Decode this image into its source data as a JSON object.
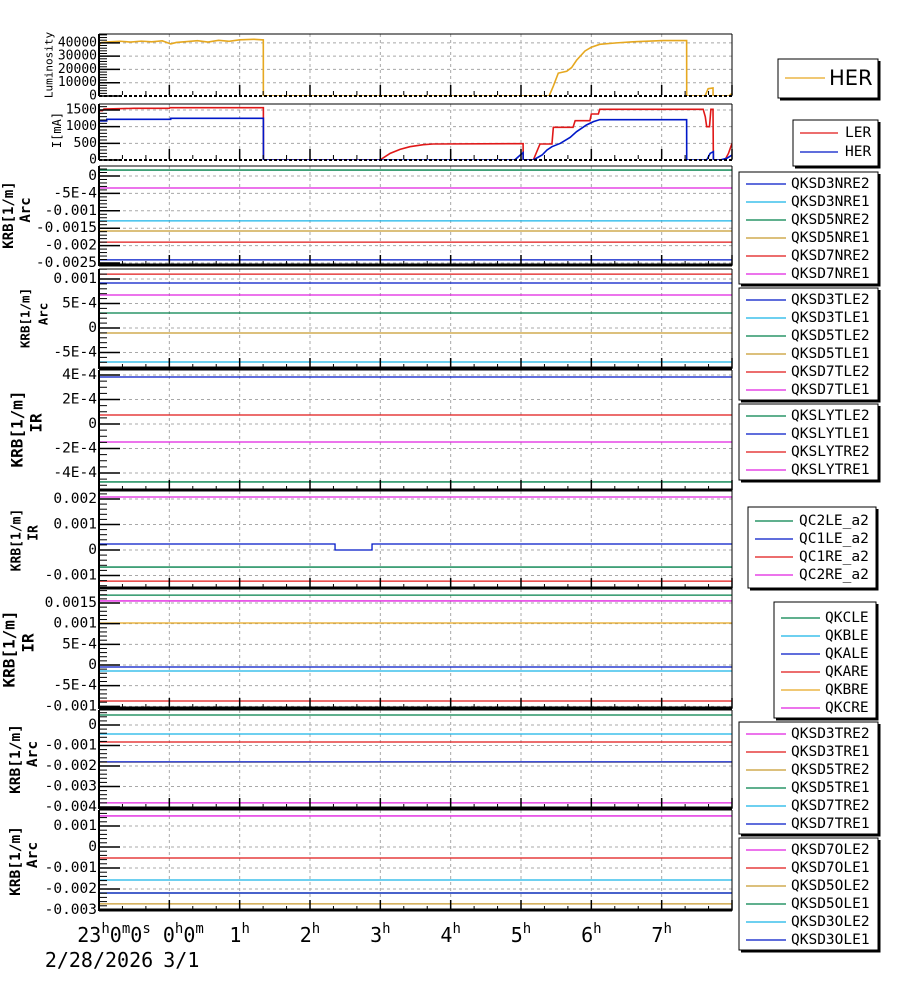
{
  "x_axis": {
    "range": [
      -1,
      8
    ],
    "ticks": [
      {
        "at": -1,
        "parts": [
          [
            "23",
            "h"
          ],
          [
            "0",
            "m"
          ],
          [
            "0",
            "s"
          ]
        ]
      },
      {
        "at": 0,
        "parts": [
          [
            "0",
            "h"
          ],
          [
            "0",
            "m"
          ]
        ]
      },
      {
        "at": 1,
        "parts": [
          [
            "1",
            "h"
          ]
        ]
      },
      {
        "at": 2,
        "parts": [
          [
            "2",
            "h"
          ]
        ]
      },
      {
        "at": 3,
        "parts": [
          [
            "3",
            "h"
          ]
        ]
      },
      {
        "at": 4,
        "parts": [
          [
            "4",
            "h"
          ]
        ]
      },
      {
        "at": 5,
        "parts": [
          [
            "5",
            "h"
          ]
        ]
      },
      {
        "at": 6,
        "parts": [
          [
            "6",
            "h"
          ]
        ]
      },
      {
        "at": 7,
        "parts": [
          [
            "7",
            "h"
          ]
        ]
      }
    ],
    "dates": [
      {
        "at": -1,
        "text": "2/28/2026"
      },
      {
        "at": 0,
        "text": "3/1"
      }
    ]
  },
  "chart_data": [
    {
      "type": "line",
      "title": "",
      "ylabel": "Luminosity",
      "ylabel2": "",
      "ylim": [
        0,
        46667
      ],
      "yticks": [
        0,
        10000,
        20000,
        30000,
        40000
      ],
      "ytick_labels": [
        "0",
        "10000",
        "20000",
        "30000",
        "40000"
      ],
      "yminor": 2000,
      "grid": true,
      "legend": "right",
      "series": [
        {
          "name": "HER",
          "color": "#e6a820",
          "points": [
            [
              -1.0,
              38500
            ],
            [
              -0.97,
              40300
            ],
            [
              -0.85,
              40800
            ],
            [
              -0.7,
              41200
            ],
            [
              -0.55,
              40600
            ],
            [
              -0.4,
              41300
            ],
            [
              -0.25,
              40800
            ],
            [
              -0.1,
              41500
            ],
            [
              -0.02,
              40000
            ],
            [
              0.02,
              39200
            ],
            [
              0.1,
              40300
            ],
            [
              0.25,
              41000
            ],
            [
              0.4,
              41600
            ],
            [
              0.55,
              40600
            ],
            [
              0.7,
              41900
            ],
            [
              0.85,
              41200
            ],
            [
              1.0,
              42300
            ],
            [
              1.2,
              42700
            ],
            [
              1.336,
              42200
            ],
            [
              1.337,
              0
            ],
            [
              5.4,
              0
            ],
            [
              5.46,
              7500
            ],
            [
              5.53,
              17200
            ],
            [
              5.65,
              18600
            ],
            [
              5.72,
              21400
            ],
            [
              5.79,
              26900
            ],
            [
              5.91,
              33900
            ],
            [
              6.0,
              36700
            ],
            [
              6.12,
              38900
            ],
            [
              6.36,
              40000
            ],
            [
              6.59,
              40800
            ],
            [
              7.02,
              41700
            ],
            [
              7.355,
              41700
            ],
            [
              7.356,
              0
            ],
            [
              7.617,
              0
            ],
            [
              7.66,
              5500
            ],
            [
              7.73,
              6100
            ],
            [
              7.731,
              0
            ],
            [
              7.96,
              0
            ],
            [
              8.0,
              2000
            ]
          ]
        }
      ]
    },
    {
      "type": "line",
      "title": "",
      "ylabel": "I[mA]",
      "ylabel2": "",
      "ylim": [
        0,
        1680
      ],
      "yticks": [
        0,
        500,
        1000,
        1500
      ],
      "ytick_labels": [
        "0",
        "500",
        "1000",
        "1500"
      ],
      "yminor": 100,
      "grid": true,
      "legend": "right",
      "series": [
        {
          "name": "LER",
          "color": "#e01818",
          "points": [
            [
              -1.0,
              1480
            ],
            [
              -0.95,
              1480
            ],
            [
              -0.93,
              1530
            ],
            [
              -0.5,
              1550
            ],
            [
              0.0,
              1550
            ],
            [
              0.01,
              1570
            ],
            [
              1.337,
              1570
            ],
            [
              1.338,
              0
            ],
            [
              2.995,
              0
            ],
            [
              3.14,
              200
            ],
            [
              3.28,
              320
            ],
            [
              3.42,
              400
            ],
            [
              3.61,
              460
            ],
            [
              3.75,
              480
            ],
            [
              5.03,
              490
            ],
            [
              5.031,
              0
            ],
            [
              5.175,
              0
            ],
            [
              5.27,
              480
            ],
            [
              5.44,
              480
            ],
            [
              5.46,
              980
            ],
            [
              5.74,
              980
            ],
            [
              5.77,
              1180
            ],
            [
              5.98,
              1180
            ],
            [
              6.0,
              1380
            ],
            [
              6.1,
              1380
            ],
            [
              6.12,
              1520
            ],
            [
              7.59,
              1520
            ],
            [
              7.62,
              1300
            ],
            [
              7.64,
              1000
            ],
            [
              7.68,
              1000
            ],
            [
              7.7,
              1520
            ],
            [
              7.73,
              1520
            ],
            [
              7.735,
              0
            ],
            [
              7.9,
              0
            ],
            [
              7.95,
              200
            ],
            [
              8.0,
              500
            ]
          ]
        },
        {
          "name": "HER",
          "color": "#0018c8",
          "points": [
            [
              -1.0,
              1170
            ],
            [
              -0.89,
              1170
            ],
            [
              -0.889,
              1220
            ],
            [
              0.02,
              1220
            ],
            [
              0.021,
              1250
            ],
            [
              1.337,
              1250
            ],
            [
              1.338,
              0
            ],
            [
              4.91,
              0
            ],
            [
              4.99,
              150
            ],
            [
              5.03,
              220
            ],
            [
              5.031,
              0
            ],
            [
              5.175,
              0
            ],
            [
              5.3,
              150
            ],
            [
              5.37,
              300
            ],
            [
              5.44,
              400
            ],
            [
              5.56,
              500
            ],
            [
              5.7,
              680
            ],
            [
              5.79,
              850
            ],
            [
              5.93,
              1050
            ],
            [
              6.03,
              1150
            ],
            [
              6.12,
              1210
            ],
            [
              7.355,
              1210
            ],
            [
              7.356,
              0
            ],
            [
              7.64,
              0
            ],
            [
              7.69,
              200
            ],
            [
              7.735,
              250
            ],
            [
              7.736,
              0
            ],
            [
              7.83,
              0
            ],
            [
              7.925,
              50
            ],
            [
              8.0,
              150
            ]
          ]
        }
      ]
    },
    {
      "type": "line",
      "title": "",
      "ylabel": "KRB[1/m]",
      "ylabel2": "Arc",
      "ylim": [
        -0.002586,
        0.000287
      ],
      "yticks": [
        0,
        -0.0005,
        -0.001,
        -0.0015,
        -0.002,
        -0.0025
      ],
      "ytick_labels": [
        "0",
        "-5E-4",
        "-0.001",
        "-0.0015",
        "-0.002",
        "-0.0025"
      ],
      "yminor": 0.0001,
      "grid": true,
      "legend": "right",
      "series": [
        {
          "name": "QKSD3NRE2",
          "color": "#0018c8",
          "value": -0.00241
        },
        {
          "name": "QKSD3NRE1",
          "color": "#18b4e8",
          "value": -0.00129
        },
        {
          "name": "QKSD5NRE2",
          "color": "#00804a",
          "value": 0.00017
        },
        {
          "name": "QKSD5NRE1",
          "color": "#c89a2e",
          "value": -0.00158
        },
        {
          "name": "QKSD7NRE2",
          "color": "#e01818",
          "value": -0.0019
        },
        {
          "name": "QKSD7NRE1",
          "color": "#e020e0",
          "value": -0.000345
        }
      ]
    },
    {
      "type": "line",
      "title": "",
      "ylabel": "KRB[1/m]",
      "ylabel2": "Arc",
      "ylim": [
        -0.000837,
        0.001204
      ],
      "yticks": [
        0.001,
        0.0005,
        0,
        -0.0005
      ],
      "ytick_labels": [
        "0.001",
        "5E-4",
        "0",
        "-5E-4"
      ],
      "yminor": 0.0001,
      "grid": true,
      "legend": "right",
      "series": [
        {
          "name": "QKSD3TLE2",
          "color": "#0018c8",
          "value": 0.000918
        },
        {
          "name": "QKSD3TLE1",
          "color": "#18b4e8",
          "value": -0.000694
        },
        {
          "name": "QKSD5TLE2",
          "color": "#00804a",
          "value": 0.000306
        },
        {
          "name": "QKSD5TLE1",
          "color": "#c89a2e",
          "value": -0.000102
        },
        {
          "name": "QKSD7TLE2",
          "color": "#e01818",
          "value": 0.0011
        },
        {
          "name": "QKSD7TLE1",
          "color": "#e020e0",
          "value": 0.000673
        }
      ]
    },
    {
      "type": "line",
      "title": "",
      "ylabel": "KRB[1/m]",
      "ylabel2": "IR",
      "ylim": [
        -0.000547,
        0.000441
      ],
      "yticks": [
        0.0004,
        0.0002,
        0,
        -0.0002,
        -0.0004
      ],
      "ytick_labels": [
        "4E-4",
        "2E-4",
        "0",
        "-2E-4",
        "-4E-4"
      ],
      "yminor": 5e-05,
      "grid": true,
      "legend": "right",
      "series": [
        {
          "name": "QKSLYTLE2",
          "color": "#00804a",
          "value": -0.000473
        },
        {
          "name": "QKSLYTLE1",
          "color": "#0018c8",
          "value": 0.000384
        },
        {
          "name": "QKSLYTRE2",
          "color": "#e01818",
          "value": 7.35e-05
        },
        {
          "name": "QKSLYTRE1",
          "color": "#e020e0",
          "value": -0.000147
        }
      ]
    },
    {
      "type": "line",
      "title": "",
      "ylabel": "KRB[1/m]",
      "ylabel2": "IR",
      "ylim": [
        -0.00153,
        0.002314
      ],
      "yticks": [
        0.002,
        0.001,
        0,
        -0.001
      ],
      "ytick_labels": [
        "0.002",
        "0.001",
        "0",
        "-0.001"
      ],
      "yminor": 0.0002,
      "grid": true,
      "legend": "right",
      "series": [
        {
          "name": "QC2LE_a2",
          "color": "#00804a",
          "value": -0.00067
        },
        {
          "name": "QC1LE_a2",
          "color": "#0018c8",
          "points": [
            [
              -1.0,
              0.000235
            ],
            [
              2.356,
              0.000235
            ],
            [
              2.356,
              0.0
            ],
            [
              2.882,
              0.0
            ],
            [
              2.882,
              0.000235
            ],
            [
              8.0,
              0.000235
            ]
          ]
        },
        {
          "name": "QC1RE_a2",
          "color": "#e01818",
          "value": -0.00122
        },
        {
          "name": "QC2RE_a2",
          "color": "#e020e0",
          "value": 0.00208
        }
      ]
    },
    {
      "type": "line",
      "title": "",
      "ylabel": "KRB[1/m]",
      "ylabel2": "IR",
      "ylim": [
        -0.001065,
        0.001839
      ],
      "yticks": [
        0.0015,
        0.001,
        0.0005,
        0,
        -0.0005,
        -0.001
      ],
      "ytick_labels": [
        "0.0015",
        "0.001",
        "5E-4",
        "0",
        "-5E-4",
        "-0.001"
      ],
      "yminor": 0.0001,
      "grid": true,
      "legend": "right",
      "series": [
        {
          "name": "QKCLE",
          "color": "#00804a",
          "value": 0.00169
        },
        {
          "name": "QKBLE",
          "color": "#18b4e8",
          "value": -0.000145
        },
        {
          "name": "QKALE",
          "color": "#0018c8",
          "value": -4.84e-05
        },
        {
          "name": "QKARE",
          "color": "#e01818",
          "value": -0.000871
        },
        {
          "name": "QKBRE",
          "color": "#e6a820",
          "value": 0.001016
        },
        {
          "name": "QKCRE",
          "color": "#e020e0",
          "value": 0.00155
        }
      ]
    },
    {
      "type": "line",
      "title": "",
      "ylabel": "KRB[1/m]",
      "ylabel2": "Arc",
      "ylim": [
        -0.004098,
        0.000732
      ],
      "yticks": [
        0,
        -0.001,
        -0.002,
        -0.003,
        -0.004
      ],
      "ytick_labels": [
        "0",
        "-0.001",
        "-0.002",
        "-0.003",
        "-0.004"
      ],
      "yminor": 0.0002,
      "grid": true,
      "legend": "right",
      "series": [
        {
          "name": "QKSD3TRE2",
          "color": "#e020e0",
          "value": -0.0038
        },
        {
          "name": "QKSD3TRE1",
          "color": "#e01818",
          "value": -0.00083
        },
        {
          "name": "QKSD5TRE2",
          "color": "#c89a2e",
          "value": -0.00181
        },
        {
          "name": "QKSD5TRE1",
          "color": "#00804a",
          "value": 0.000488
        },
        {
          "name": "QKSD7TRE2",
          "color": "#18b4e8",
          "value": -0.000439
        },
        {
          "name": "QKSD7TRE1",
          "color": "#0018c8",
          "value": -0.0018
        }
      ]
    },
    {
      "type": "line",
      "title": "",
      "ylabel": "KRB[1/m]",
      "ylabel2": "Arc",
      "ylim": [
        -0.003048,
        0.001762
      ],
      "yticks": [
        0.001,
        0,
        -0.001,
        -0.002,
        -0.003
      ],
      "ytick_labels": [
        "0.001",
        "0",
        "-0.001",
        "-0.002",
        "-0.003"
      ],
      "yminor": 0.0002,
      "grid": true,
      "legend": "right",
      "series": [
        {
          "name": "QKSD7OLE2",
          "color": "#e020e0",
          "value": 0.00148
        },
        {
          "name": "QKSD7OLE1",
          "color": "#e01818",
          "value": -0.000524
        },
        {
          "name": "QKSD5OLE2",
          "color": "#c89a2e",
          "value": -0.00271
        },
        {
          "name": "QKSD5OLE1",
          "color": "#00804a",
          "value": -0.00219
        },
        {
          "name": "QKSD3OLE2",
          "color": "#18b4e8",
          "value": -0.00157
        },
        {
          "name": "QKSD3OLE1",
          "color": "#0018c8",
          "value": -0.00219
        }
      ]
    }
  ]
}
